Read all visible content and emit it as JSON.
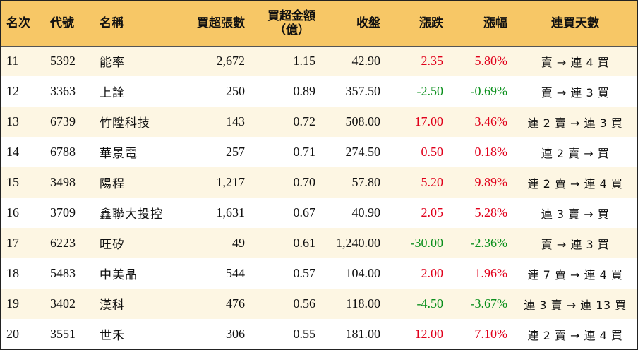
{
  "colors": {
    "header_bg": "#f7c766",
    "odd_row_bg": "#fdf6e3",
    "up": "#e0001b",
    "down": "#0a8f1c"
  },
  "headers": {
    "rank": "名次",
    "code": "代號",
    "name": "名稱",
    "net_buy_lots": "買超張數",
    "net_buy_amount_line1": "買超金額",
    "net_buy_amount_line2": "（億）",
    "close": "收盤",
    "change": "漲跌",
    "change_pct": "漲幅",
    "streak": "連買天數"
  },
  "rows": [
    {
      "rank": "11",
      "code": "5392",
      "name": "能率",
      "lots": "2,672",
      "amount": "1.15",
      "close": "42.90",
      "change": "2.35",
      "pct": "5.80%",
      "streak": "賣 → 連 4 買",
      "dir": "up"
    },
    {
      "rank": "12",
      "code": "3363",
      "name": "上詮",
      "lots": "250",
      "amount": "0.89",
      "close": "357.50",
      "change": "-2.50",
      "pct": "-0.69%",
      "streak": "賣 → 連 3 買",
      "dir": "down"
    },
    {
      "rank": "13",
      "code": "6739",
      "name": "竹陞科技",
      "lots": "143",
      "amount": "0.72",
      "close": "508.00",
      "change": "17.00",
      "pct": "3.46%",
      "streak": "連 2 賣 → 連 3 買",
      "dir": "up"
    },
    {
      "rank": "14",
      "code": "6788",
      "name": "華景電",
      "lots": "257",
      "amount": "0.71",
      "close": "274.50",
      "change": "0.50",
      "pct": "0.18%",
      "streak": "連 2 賣 → 買",
      "dir": "up"
    },
    {
      "rank": "15",
      "code": "3498",
      "name": "陽程",
      "lots": "1,217",
      "amount": "0.70",
      "close": "57.80",
      "change": "5.20",
      "pct": "9.89%",
      "streak": "連 2 賣 → 連 4 買",
      "dir": "up"
    },
    {
      "rank": "16",
      "code": "3709",
      "name": "鑫聯大投控",
      "lots": "1,631",
      "amount": "0.67",
      "close": "40.90",
      "change": "2.05",
      "pct": "5.28%",
      "streak": "連 3 賣 → 買",
      "dir": "up"
    },
    {
      "rank": "17",
      "code": "6223",
      "name": "旺矽",
      "lots": "49",
      "amount": "0.61",
      "close": "1,240.00",
      "change": "-30.00",
      "pct": "-2.36%",
      "streak": "賣 → 連 3 買",
      "dir": "down"
    },
    {
      "rank": "18",
      "code": "5483",
      "name": "中美晶",
      "lots": "544",
      "amount": "0.57",
      "close": "104.00",
      "change": "2.00",
      "pct": "1.96%",
      "streak": "連 7 賣 → 連 4 買",
      "dir": "up"
    },
    {
      "rank": "19",
      "code": "3402",
      "name": "漢科",
      "lots": "476",
      "amount": "0.56",
      "close": "118.00",
      "change": "-4.50",
      "pct": "-3.67%",
      "streak": "連 3 賣 → 連 13 買",
      "dir": "down"
    },
    {
      "rank": "20",
      "code": "3551",
      "name": "世禾",
      "lots": "306",
      "amount": "0.55",
      "close": "181.00",
      "change": "12.00",
      "pct": "7.10%",
      "streak": "連 2 賣 → 連 4 買",
      "dir": "up"
    }
  ]
}
